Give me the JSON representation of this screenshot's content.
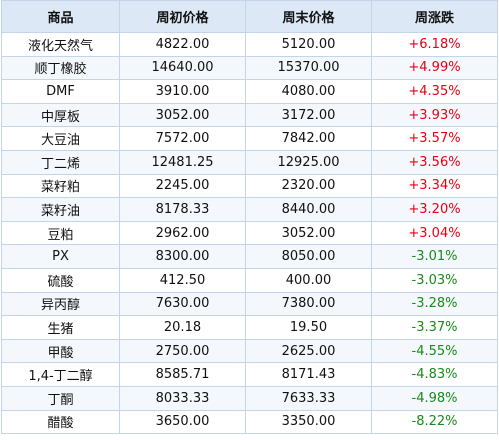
{
  "colors": {
    "up": "#e60012",
    "down": "#1a8a1a",
    "header_bg": "#dde8f6",
    "border": "#c4d5ea"
  },
  "table": {
    "headers": [
      "商品",
      "周初价格",
      "周末价格",
      "周涨跌"
    ],
    "rows": [
      {
        "name": "液化天然气",
        "start": "4822.00",
        "end": "5120.00",
        "change": "+6.18%",
        "direction": "up"
      },
      {
        "name": "顺丁橡胶",
        "start": "14640.00",
        "end": "15370.00",
        "change": "+4.99%",
        "direction": "up"
      },
      {
        "name": "DMF",
        "start": "3910.00",
        "end": "4080.00",
        "change": "+4.35%",
        "direction": "up"
      },
      {
        "name": "中厚板",
        "start": "3052.00",
        "end": "3172.00",
        "change": "+3.93%",
        "direction": "up"
      },
      {
        "name": "大豆油",
        "start": "7572.00",
        "end": "7842.00",
        "change": "+3.57%",
        "direction": "up"
      },
      {
        "name": "丁二烯",
        "start": "12481.25",
        "end": "12925.00",
        "change": "+3.56%",
        "direction": "up"
      },
      {
        "name": "菜籽粕",
        "start": "2245.00",
        "end": "2320.00",
        "change": "+3.34%",
        "direction": "up"
      },
      {
        "name": "菜籽油",
        "start": "8178.33",
        "end": "8440.00",
        "change": "+3.20%",
        "direction": "up"
      },
      {
        "name": "豆粕",
        "start": "2962.00",
        "end": "3052.00",
        "change": "+3.04%",
        "direction": "up"
      },
      {
        "name": "PX",
        "start": "8300.00",
        "end": "8050.00",
        "change": "-3.01%",
        "direction": "down"
      },
      {
        "name": "硫酸",
        "start": "412.50",
        "end": "400.00",
        "change": "-3.03%",
        "direction": "down"
      },
      {
        "name": "异丙醇",
        "start": "7630.00",
        "end": "7380.00",
        "change": "-3.28%",
        "direction": "down"
      },
      {
        "name": "生猪",
        "start": "20.18",
        "end": "19.50",
        "change": "-3.37%",
        "direction": "down"
      },
      {
        "name": "甲酸",
        "start": "2750.00",
        "end": "2625.00",
        "change": "-4.55%",
        "direction": "down"
      },
      {
        "name": "1,4-丁二醇",
        "start": "8585.71",
        "end": "8171.43",
        "change": "-4.83%",
        "direction": "down"
      },
      {
        "name": "丁酮",
        "start": "8033.33",
        "end": "7633.33",
        "change": "-4.98%",
        "direction": "down"
      },
      {
        "name": "醋酸",
        "start": "3650.00",
        "end": "3350.00",
        "change": "-8.22%",
        "direction": "down"
      }
    ]
  }
}
